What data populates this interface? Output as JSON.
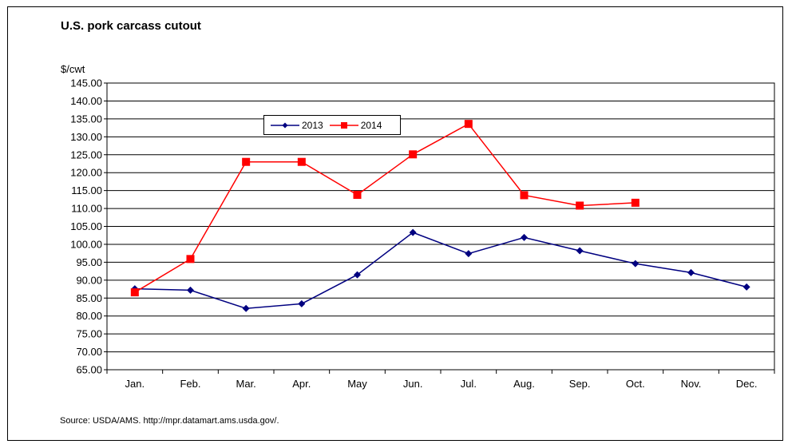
{
  "chart_data": {
    "type": "line",
    "title": "U.S. pork carcass cutout",
    "ylabel": "$/cwt",
    "xlabel": "",
    "categories": [
      "Jan.",
      "Feb.",
      "Mar.",
      "Apr.",
      "May",
      "Jun.",
      "Jul.",
      "Aug.",
      "Sep.",
      "Oct.",
      "Nov.",
      "Dec."
    ],
    "ylim": [
      65,
      145
    ],
    "ytick_step": 5,
    "ytick_labels": [
      "145.00",
      "140.00",
      "135.00",
      "130.00",
      "125.00",
      "120.00",
      "115.00",
      "110.00",
      "105.00",
      "100.00",
      "95.00",
      "90.00",
      "85.00",
      "80.00",
      "75.00",
      "70.00",
      "65.00"
    ],
    "grid": true,
    "legend_position": "top-center",
    "series": [
      {
        "name": "2013",
        "color": "#000080",
        "marker": "diamond",
        "values": [
          87.6,
          87.2,
          82.1,
          83.4,
          91.5,
          103.3,
          97.4,
          101.9,
          98.2,
          94.6,
          92.1,
          88.1
        ]
      },
      {
        "name": "2014",
        "color": "#ff0000",
        "marker": "square",
        "values": [
          86.6,
          95.9,
          123.0,
          123.0,
          113.8,
          125.1,
          133.6,
          113.7,
          110.8,
          111.6,
          null,
          null
        ]
      }
    ],
    "source": "Source: USDA/AMS. http://mpr.datamart.ams.usda.gov/."
  }
}
